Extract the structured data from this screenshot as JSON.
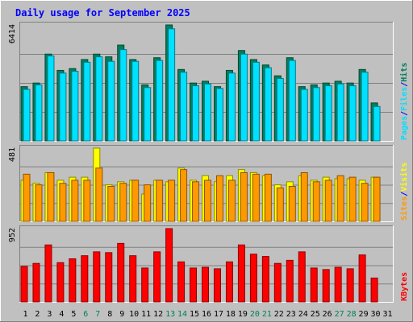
{
  "chart_data": [
    {
      "type": "bar",
      "title": "Daily usage for September 2025",
      "categories": [
        "1",
        "2",
        "3",
        "4",
        "5",
        "6",
        "7",
        "8",
        "9",
        "10",
        "11",
        "12",
        "13",
        "14",
        "15",
        "16",
        "17",
        "18",
        "19",
        "20",
        "21",
        "22",
        "23",
        "24",
        "25",
        "26",
        "27",
        "28",
        "29",
        "30",
        "31"
      ],
      "weekend_days": [
        "6",
        "7",
        "13",
        "14",
        "20",
        "21",
        "27",
        "28"
      ],
      "ymax_label": "6414",
      "ymax": 6414,
      "legend": [
        "Pages",
        "/",
        "Files",
        "/",
        "Hits"
      ],
      "series": [
        {
          "name": "Hits",
          "color": "#00805c",
          "values": [
            3000,
            3200,
            4800,
            3900,
            4000,
            4500,
            4800,
            4650,
            5300,
            4500,
            3100,
            4600,
            6414,
            3950,
            3200,
            3300,
            3000,
            3900,
            5000,
            4500,
            4200,
            3600,
            4600,
            3000,
            3100,
            3200,
            3300,
            3200,
            3950,
            2100,
            0
          ]
        },
        {
          "name": "Files",
          "color": "#00e0ff",
          "values": [
            2850,
            3100,
            4700,
            3750,
            3850,
            4350,
            4650,
            4400,
            5050,
            4400,
            2950,
            4450,
            6200,
            3800,
            3050,
            3150,
            2900,
            3750,
            4800,
            4350,
            4050,
            3450,
            4450,
            2850,
            2950,
            3050,
            3150,
            3050,
            3800,
            1900,
            0
          ]
        },
        {
          "name": "Pages",
          "color": "#00e0ff",
          "values": [
            0,
            0,
            0,
            0,
            0,
            0,
            0,
            0,
            0,
            0,
            0,
            0,
            0,
            0,
            0,
            0,
            0,
            0,
            0,
            0,
            0,
            0,
            0,
            0,
            0,
            0,
            0,
            0,
            0,
            0,
            0
          ]
        }
      ]
    },
    {
      "type": "bar",
      "ymax_label": "481",
      "ymax": 481,
      "legend": [
        "Sites",
        "/",
        "Visits"
      ],
      "series": [
        {
          "name": "Visits",
          "color": "#ffff00",
          "values": [
            270,
            250,
            320,
            270,
            290,
            290,
            481,
            240,
            260,
            270,
            180,
            270,
            260,
            350,
            270,
            300,
            260,
            300,
            340,
            320,
            300,
            240,
            260,
            300,
            270,
            290,
            280,
            280,
            270,
            290,
            0
          ]
        },
        {
          "name": "Sites",
          "color": "#ff9900",
          "values": [
            310,
            240,
            320,
            250,
            270,
            270,
            350,
            230,
            250,
            270,
            240,
            270,
            270,
            340,
            260,
            270,
            300,
            270,
            320,
            310,
            310,
            220,
            230,
            320,
            260,
            270,
            300,
            290,
            250,
            290,
            0
          ]
        }
      ]
    },
    {
      "type": "bar",
      "ymax_label": "952",
      "ymax": 952,
      "legend": [
        "KBytes"
      ],
      "series": [
        {
          "name": "KBytes",
          "color": "#ff0000",
          "values": [
            460,
            500,
            740,
            510,
            560,
            600,
            650,
            640,
            760,
            600,
            440,
            650,
            952,
            520,
            440,
            450,
            430,
            520,
            740,
            620,
            590,
            500,
            540,
            650,
            440,
            420,
            450,
            430,
            610,
            310,
            0
          ]
        }
      ]
    }
  ]
}
